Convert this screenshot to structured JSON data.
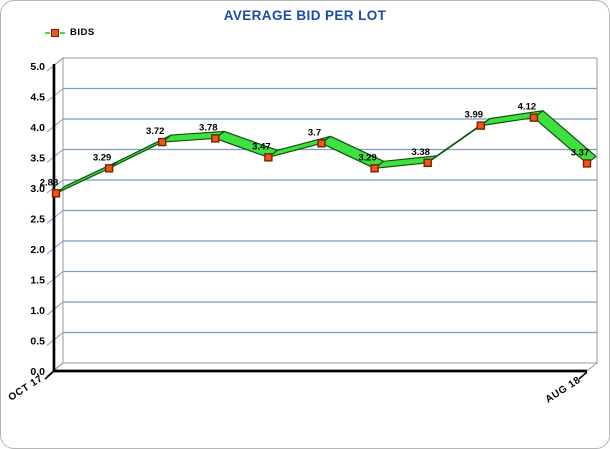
{
  "window": {
    "title": "AVERAGE BID PER LOT"
  },
  "legend": {
    "label": "BIDS",
    "marker_icon": "square-marker-icon"
  },
  "chart_data": {
    "type": "line",
    "style": "3d-ribbon",
    "title": "AVERAGE BID PER LOT",
    "legend_entries": [
      "BIDS"
    ],
    "legend_position": "top-left",
    "x_tick_labels": [
      "OCT 17",
      "AUG 18"
    ],
    "num_points": 11,
    "series": [
      {
        "name": "BIDS",
        "values": [
          2.88,
          3.29,
          3.72,
          3.78,
          3.47,
          3.7,
          3.29,
          3.38,
          3.99,
          4.12,
          3.37
        ]
      }
    ],
    "point_labels": [
      "2.88",
      "3.29",
      "3.72",
      "3.78",
      "3.47",
      "3.7",
      "3.29",
      "3.38",
      "3.99",
      "4.12",
      "3.37"
    ],
    "y_ticks": [
      0,
      0.5,
      1,
      1.5,
      2,
      2.5,
      3,
      3.5,
      4,
      4.5,
      5
    ],
    "ylim": [
      0,
      5
    ],
    "grid": true,
    "colors": {
      "title": "#1b4aad",
      "line": "#3fe03f",
      "line_edge": "#0b520b",
      "marker_fill": "#f0551c",
      "marker_edge": "#7a2000",
      "gridline": "#7f9cc2",
      "axis": "#000000",
      "wall_edge": "#9a9a9a"
    }
  }
}
